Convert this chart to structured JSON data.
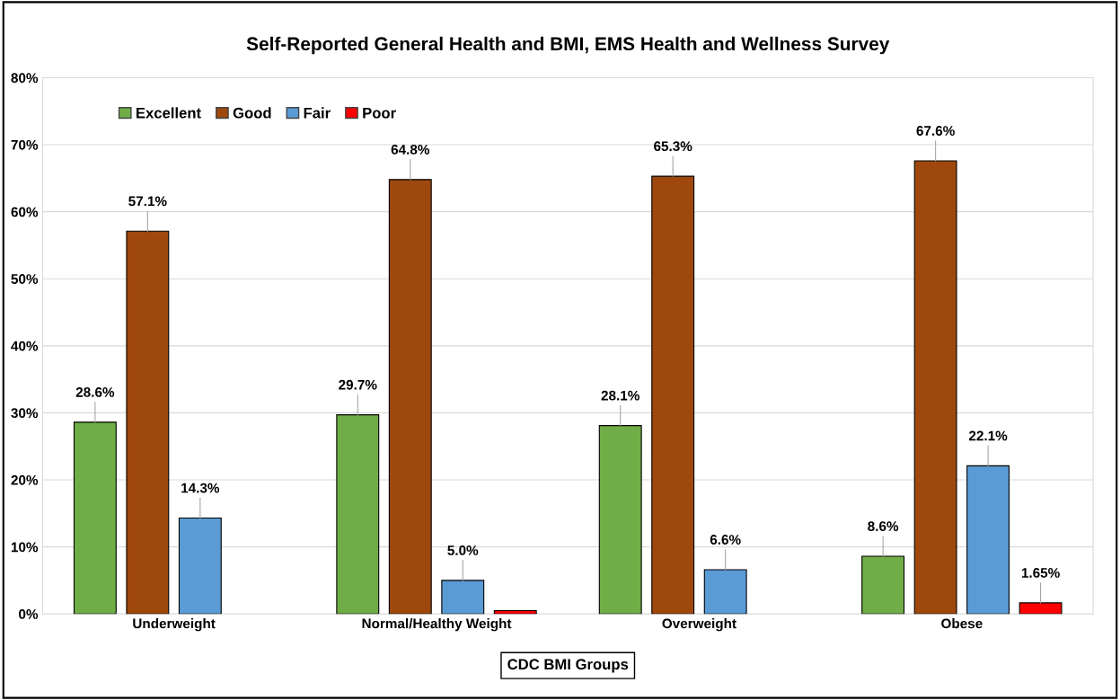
{
  "chart_data": {
    "type": "bar",
    "title": "Self-Reported General Health and BMI, EMS Health and Wellness Survey",
    "xlabel": "CDC BMI Groups",
    "categories": [
      "Underweight",
      "Normal/Healthy Weight",
      "Overweight",
      "Obese"
    ],
    "series": [
      {
        "name": "Excellent",
        "color": "#70ad47",
        "values": [
          28.6,
          29.7,
          28.1,
          8.6
        ],
        "value_labels": [
          "28.6%",
          "29.7%",
          "28.1%",
          "8.6%"
        ]
      },
      {
        "name": "Good",
        "color": "#9e480e",
        "values": [
          57.1,
          64.8,
          65.3,
          67.6
        ],
        "value_labels": [
          "57.1%",
          "64.8%",
          "65.3%",
          "67.6%"
        ]
      },
      {
        "name": "Fair",
        "color": "#5b9bd5",
        "values": [
          14.3,
          5.0,
          6.6,
          22.1
        ],
        "value_labels": [
          "14.3%",
          "5.0%",
          "6.6%",
          "22.1%"
        ]
      },
      {
        "name": "Poor",
        "color": "#ff0000",
        "values": [
          null,
          0.5,
          null,
          1.65
        ],
        "value_labels": [
          null,
          null,
          null,
          "1.65%"
        ]
      }
    ],
    "ylim": [
      0,
      80
    ],
    "yticks": [
      {
        "value": 0,
        "label": "0%"
      },
      {
        "value": 10,
        "label": "10%"
      },
      {
        "value": 20,
        "label": "20%"
      },
      {
        "value": 30,
        "label": "30%"
      },
      {
        "value": 40,
        "label": "40%"
      },
      {
        "value": 50,
        "label": "50%"
      },
      {
        "value": 60,
        "label": "60%"
      },
      {
        "value": 70,
        "label": "70%"
      },
      {
        "value": 80,
        "label": "80%"
      }
    ],
    "grid": "y",
    "legend": "top left"
  }
}
